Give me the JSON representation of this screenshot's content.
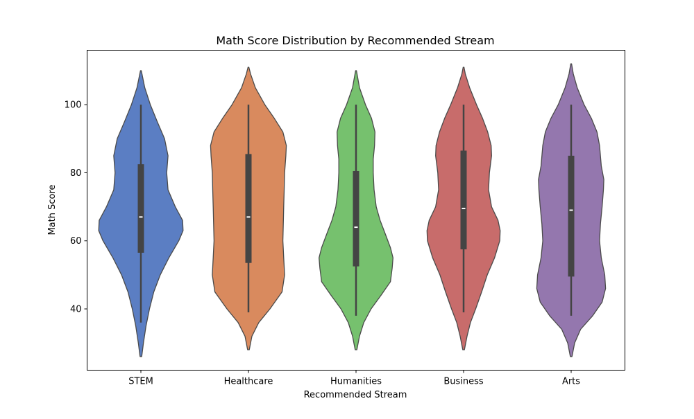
{
  "chart_data": {
    "type": "violin",
    "title": "Math Score Distribution by Recommended Stream",
    "xlabel": "Recommended Stream",
    "ylabel": "Math Score",
    "ylim": [
      22,
      116
    ],
    "yticks": [
      40,
      60,
      80,
      100
    ],
    "grid": false,
    "categories": [
      "STEM",
      "Healthcare",
      "Humanities",
      "Business",
      "Arts"
    ],
    "series": [
      {
        "category": "STEM",
        "color": "#5b7ec3",
        "min": 36,
        "q1": 56.5,
        "median": 67,
        "q3": 82.5,
        "max": 100,
        "extent": [
          26,
          110
        ],
        "density": [
          [
            26,
            0.02
          ],
          [
            30,
            0.06
          ],
          [
            35,
            0.12
          ],
          [
            40,
            0.2
          ],
          [
            45,
            0.3
          ],
          [
            50,
            0.45
          ],
          [
            55,
            0.65
          ],
          [
            60,
            0.88
          ],
          [
            63,
            0.98
          ],
          [
            66,
            0.97
          ],
          [
            70,
            0.8
          ],
          [
            75,
            0.63
          ],
          [
            80,
            0.6
          ],
          [
            85,
            0.63
          ],
          [
            90,
            0.55
          ],
          [
            95,
            0.38
          ],
          [
            100,
            0.22
          ],
          [
            105,
            0.09
          ],
          [
            110,
            0.01
          ]
        ]
      },
      {
        "category": "Healthcare",
        "color": "#d98a5e",
        "min": 39,
        "q1": 53.5,
        "median": 67,
        "q3": 85.5,
        "max": 100,
        "extent": [
          28,
          111
        ],
        "density": [
          [
            28,
            0.02
          ],
          [
            32,
            0.08
          ],
          [
            36,
            0.24
          ],
          [
            40,
            0.5
          ],
          [
            45,
            0.78
          ],
          [
            50,
            0.84
          ],
          [
            55,
            0.82
          ],
          [
            60,
            0.8
          ],
          [
            65,
            0.81
          ],
          [
            70,
            0.82
          ],
          [
            75,
            0.83
          ],
          [
            80,
            0.84
          ],
          [
            85,
            0.87
          ],
          [
            88,
            0.88
          ],
          [
            92,
            0.8
          ],
          [
            96,
            0.6
          ],
          [
            100,
            0.38
          ],
          [
            105,
            0.16
          ],
          [
            109,
            0.05
          ],
          [
            111,
            0.01
          ]
        ]
      },
      {
        "category": "Humanities",
        "color": "#76c16e",
        "min": 38,
        "q1": 52.5,
        "median": 64,
        "q3": 80.5,
        "max": 100,
        "extent": [
          28,
          110
        ],
        "density": [
          [
            28,
            0.02
          ],
          [
            32,
            0.08
          ],
          [
            36,
            0.18
          ],
          [
            40,
            0.35
          ],
          [
            44,
            0.58
          ],
          [
            48,
            0.8
          ],
          [
            52,
            0.84
          ],
          [
            55,
            0.86
          ],
          [
            58,
            0.8
          ],
          [
            62,
            0.68
          ],
          [
            66,
            0.56
          ],
          [
            70,
            0.47
          ],
          [
            75,
            0.42
          ],
          [
            80,
            0.4
          ],
          [
            84,
            0.4
          ],
          [
            88,
            0.43
          ],
          [
            92,
            0.44
          ],
          [
            96,
            0.36
          ],
          [
            100,
            0.22
          ],
          [
            105,
            0.08
          ],
          [
            110,
            0.01
          ]
        ]
      },
      {
        "category": "Business",
        "color": "#c86c6b",
        "min": 39,
        "q1": 57.5,
        "median": 69.5,
        "q3": 86.5,
        "max": 100,
        "extent": [
          28,
          111
        ],
        "density": [
          [
            28,
            0.02
          ],
          [
            32,
            0.08
          ],
          [
            36,
            0.16
          ],
          [
            40,
            0.28
          ],
          [
            45,
            0.42
          ],
          [
            50,
            0.55
          ],
          [
            55,
            0.72
          ],
          [
            60,
            0.84
          ],
          [
            63,
            0.85
          ],
          [
            66,
            0.8
          ],
          [
            70,
            0.65
          ],
          [
            75,
            0.58
          ],
          [
            80,
            0.6
          ],
          [
            85,
            0.65
          ],
          [
            88,
            0.64
          ],
          [
            92,
            0.56
          ],
          [
            96,
            0.44
          ],
          [
            100,
            0.3
          ],
          [
            105,
            0.14
          ],
          [
            109,
            0.04
          ],
          [
            111,
            0.01
          ]
        ]
      },
      {
        "category": "Arts",
        "color": "#9477ae",
        "min": 38,
        "q1": 49.5,
        "median": 69,
        "q3": 85,
        "max": 100,
        "extent": [
          26,
          112
        ],
        "density": [
          [
            26,
            0.02
          ],
          [
            30,
            0.08
          ],
          [
            34,
            0.22
          ],
          [
            38,
            0.5
          ],
          [
            42,
            0.72
          ],
          [
            46,
            0.8
          ],
          [
            50,
            0.78
          ],
          [
            55,
            0.7
          ],
          [
            60,
            0.66
          ],
          [
            65,
            0.68
          ],
          [
            70,
            0.72
          ],
          [
            75,
            0.75
          ],
          [
            78,
            0.76
          ],
          [
            82,
            0.7
          ],
          [
            88,
            0.66
          ],
          [
            92,
            0.6
          ],
          [
            96,
            0.47
          ],
          [
            100,
            0.3
          ],
          [
            105,
            0.14
          ],
          [
            109,
            0.05
          ],
          [
            112,
            0.01
          ]
        ]
      }
    ]
  }
}
